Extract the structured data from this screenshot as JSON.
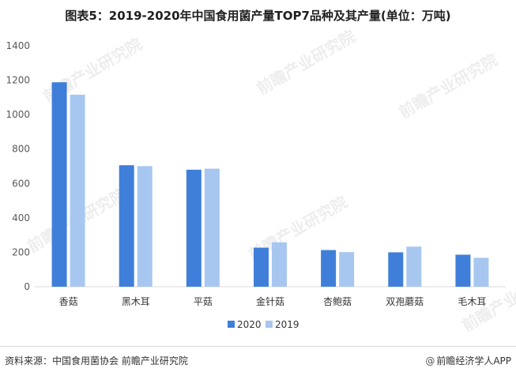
{
  "title": "图表5：2019-2020年中国食用菌产量TOP7品种及其产量(单位：万吨)",
  "footer": {
    "source": "资料来源：中国食用菌协会 前瞻产业研究院",
    "brand": "前瞻经济学人APP",
    "brand_logo": "@"
  },
  "watermark_text": "前瞻产业研究院",
  "chart_data": {
    "type": "bar",
    "title": "图表5：2019-2020年中国食用菌产量TOP7品种及其产量(单位：万吨)",
    "xlabel": "",
    "ylabel": "",
    "ylim": [
      0,
      1400
    ],
    "yticks": [
      0,
      200,
      400,
      600,
      800,
      1000,
      1200,
      1400
    ],
    "grid": false,
    "legend_position": "bottom",
    "categories": [
      "香菇",
      "黑木耳",
      "平菇",
      "金针菇",
      "杏鲍菇",
      "双孢蘑菇",
      "毛木耳"
    ],
    "series": [
      {
        "name": "2020",
        "color": "#3f7fd9",
        "values": [
          1188,
          706,
          680,
          227,
          213,
          200,
          186
        ]
      },
      {
        "name": "2019",
        "color": "#a7c7f0",
        "values": [
          1116,
          701,
          686,
          258,
          201,
          233,
          168
        ]
      }
    ]
  }
}
